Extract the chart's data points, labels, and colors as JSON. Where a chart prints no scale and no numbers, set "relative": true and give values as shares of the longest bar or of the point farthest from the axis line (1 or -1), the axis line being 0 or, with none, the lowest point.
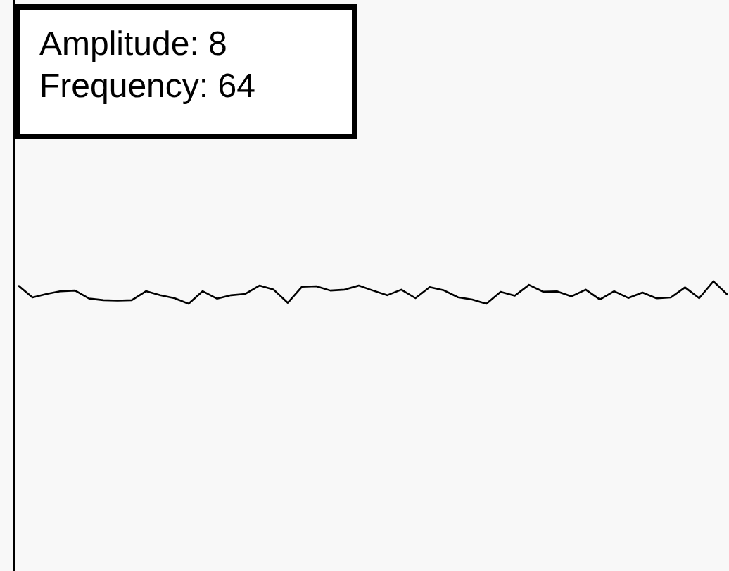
{
  "chart_data": {
    "type": "line",
    "relative": true,
    "categories": [
      null,
      null,
      null,
      null,
      null,
      null,
      null,
      null,
      null,
      null,
      null,
      null,
      null,
      null,
      null,
      null,
      null,
      null,
      null,
      null,
      null,
      null,
      null,
      null,
      null,
      null,
      null,
      null,
      null,
      null,
      null,
      null,
      null,
      null,
      null,
      null,
      null,
      null,
      null,
      null,
      null,
      null,
      null,
      null,
      null,
      null,
      null,
      null,
      null,
      null,
      null
    ],
    "series": [
      {
        "color": "#000000",
        "values": [
          0.81,
          0.28,
          0.44,
          0.56,
          0.59,
          0.23,
          0.16,
          0.14,
          0.16,
          0.56,
          0.38,
          0.25,
          0,
          0.56,
          0.23,
          0.38,
          0.44,
          0.81,
          0.63,
          0.04,
          0.76,
          0.78,
          0.59,
          0.63,
          0.81,
          0.59,
          0.38,
          0.63,
          0.25,
          0.74,
          0.6,
          0.29,
          0.19,
          0,
          0.53,
          0.36,
          0.84,
          0.54,
          0.55,
          0.33,
          0.63,
          0.19,
          0.56,
          0.26,
          0.5,
          0.24,
          0.28,
          0.73,
          0.25,
          1,
          0.4
        ]
      }
    ],
    "annotations": [
      "Amplitude: 8",
      "Frequency: 64"
    ],
    "marker": "none",
    "line_style": "solid",
    "grid": false,
    "legend": false
  }
}
